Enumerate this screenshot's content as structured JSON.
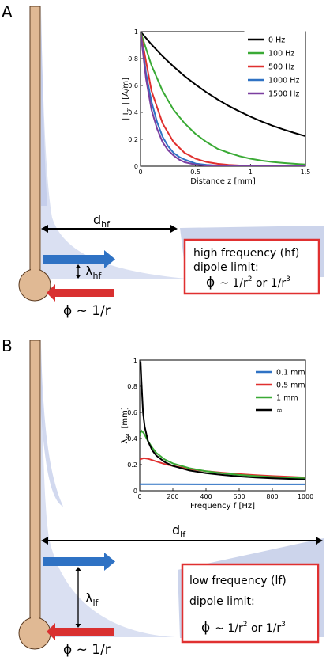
{
  "panels": [
    {
      "letter": "A",
      "distance_label": "d",
      "distance_sub": "hf",
      "lambda_label": "λ",
      "lambda_sub": "hf",
      "phi_label": "ϕ ~ 1/r",
      "box": {
        "line1": "high frequency (hf)",
        "line2": "dipole limit:",
        "phi": "ϕ",
        "rel": "~ 1/r",
        "sup1": "2",
        "mid": " or  1/r",
        "sup2": "3"
      }
    },
    {
      "letter": "B",
      "distance_label": "d",
      "distance_sub": "lf",
      "lambda_label": "λ",
      "lambda_sub": "lf",
      "phi_label": "ϕ ~ 1/r",
      "box": {
        "line1": "low frequency (lf)",
        "line2": "dipole limit:",
        "phi": "ϕ",
        "rel": "~ 1/r",
        "sup1": "2",
        "mid": "  or 1/r",
        "sup2": "3"
      }
    }
  ],
  "colors": {
    "neuron": "#e0b994",
    "neuron_stroke": "#5a3a20",
    "field": "#d3daf0",
    "box_border": "#e03030",
    "blue_arrow": "#2f72c4",
    "red_arrow": "#d93030"
  },
  "chart_data": [
    {
      "type": "line",
      "xlabel": "Distance z [mm]",
      "ylabel": "|i_m| [A/m]",
      "ylabel_main": "i",
      "ylabel_sub": "m",
      "ylabel_unit": "[A/m]",
      "xlim": [
        0,
        1.5
      ],
      "ylim": [
        0,
        1
      ],
      "xticks": [
        "0",
        "0.5",
        "1",
        "1.5"
      ],
      "yticks": [
        "0",
        "0.2",
        "0.4",
        "0.6",
        "0.8",
        "1"
      ],
      "series": [
        {
          "name": "0 Hz",
          "color": "#000000",
          "x": [
            0,
            0.1,
            0.2,
            0.3,
            0.4,
            0.5,
            0.6,
            0.7,
            0.8,
            0.9,
            1.0,
            1.1,
            1.2,
            1.3,
            1.4,
            1.5
          ],
          "y": [
            1.0,
            0.905,
            0.818,
            0.741,
            0.67,
            0.607,
            0.549,
            0.497,
            0.449,
            0.407,
            0.368,
            0.333,
            0.301,
            0.273,
            0.247,
            0.223
          ]
        },
        {
          "name": "100 Hz",
          "color": "#3aaa35",
          "x": [
            0,
            0.1,
            0.2,
            0.3,
            0.4,
            0.5,
            0.6,
            0.7,
            0.8,
            0.9,
            1.0,
            1.1,
            1.2,
            1.3,
            1.4,
            1.5
          ],
          "y": [
            1.0,
            0.75,
            0.56,
            0.42,
            0.32,
            0.24,
            0.18,
            0.13,
            0.1,
            0.075,
            0.056,
            0.042,
            0.032,
            0.024,
            0.018,
            0.013
          ]
        },
        {
          "name": "500 Hz",
          "color": "#e0302f",
          "x": [
            0,
            0.1,
            0.2,
            0.3,
            0.4,
            0.5,
            0.6,
            0.7,
            0.8,
            0.9,
            1.0,
            1.1,
            1.2,
            1.3,
            1.4,
            1.5
          ],
          "y": [
            1.0,
            0.56,
            0.32,
            0.18,
            0.1,
            0.056,
            0.032,
            0.018,
            0.01,
            0.006,
            0.003,
            0.002,
            0.001,
            0.0,
            0.0,
            0.0
          ]
        },
        {
          "name": "1000 Hz",
          "color": "#2f72c4",
          "x": [
            0,
            0.05,
            0.1,
            0.15,
            0.2,
            0.25,
            0.3,
            0.35,
            0.4,
            0.5,
            0.6,
            0.8,
            1.0,
            1.5
          ],
          "y": [
            1.0,
            0.69,
            0.48,
            0.33,
            0.22,
            0.15,
            0.1,
            0.07,
            0.05,
            0.02,
            0.01,
            0.0,
            0.0,
            0.0
          ]
        },
        {
          "name": "1500 Hz",
          "color": "#7b3fa0",
          "x": [
            0,
            0.05,
            0.1,
            0.15,
            0.2,
            0.25,
            0.3,
            0.35,
            0.4,
            0.5,
            0.6,
            0.8,
            1.0,
            1.5
          ],
          "y": [
            1.0,
            0.65,
            0.42,
            0.28,
            0.18,
            0.12,
            0.08,
            0.05,
            0.03,
            0.012,
            0.005,
            0.0,
            0.0,
            0.0
          ]
        }
      ],
      "legend": "top-right",
      "grid": false
    },
    {
      "type": "line",
      "xlabel": "Frequency f [Hz]",
      "ylabel": "λ_AC [mm]",
      "ylabel_main": "λ",
      "ylabel_sub": "AC",
      "ylabel_unit": "[mm]",
      "xlim": [
        0,
        1000
      ],
      "ylim": [
        0,
        1
      ],
      "xticks": [
        "0",
        "200",
        "400",
        "600",
        "800",
        "1000"
      ],
      "yticks": [
        "0",
        "0.2",
        "0.4",
        "0.6",
        "0.8",
        "1"
      ],
      "series": [
        {
          "name": "0.1 mm",
          "color": "#2f72c4",
          "x": [
            0,
            100,
            200,
            400,
            600,
            800,
            1000
          ],
          "y": [
            0.05,
            0.05,
            0.05,
            0.049,
            0.049,
            0.049,
            0.049
          ]
        },
        {
          "name": "0.5 mm",
          "color": "#e0302f",
          "x": [
            0,
            25,
            50,
            100,
            150,
            200,
            300,
            400,
            500,
            600,
            700,
            800,
            900,
            1000
          ],
          "y": [
            0.24,
            0.25,
            0.245,
            0.225,
            0.205,
            0.19,
            0.167,
            0.15,
            0.138,
            0.128,
            0.12,
            0.113,
            0.107,
            0.102
          ]
        },
        {
          "name": "1 mm",
          "color": "#3aaa35",
          "x": [
            0,
            10,
            25,
            50,
            75,
            100,
            150,
            200,
            300,
            400,
            500,
            600,
            700,
            800,
            900,
            1000
          ],
          "y": [
            0.42,
            0.46,
            0.44,
            0.38,
            0.33,
            0.29,
            0.24,
            0.21,
            0.173,
            0.15,
            0.134,
            0.122,
            0.113,
            0.106,
            0.1,
            0.095
          ]
        },
        {
          "name": "∞",
          "color": "#000000",
          "x": [
            5,
            10,
            20,
            30,
            50,
            75,
            100,
            150,
            200,
            300,
            400,
            500,
            600,
            700,
            800,
            900,
            1000
          ],
          "y": [
            0.99,
            0.85,
            0.6,
            0.49,
            0.38,
            0.31,
            0.27,
            0.22,
            0.19,
            0.155,
            0.135,
            0.121,
            0.11,
            0.102,
            0.096,
            0.091,
            0.086
          ]
        }
      ],
      "legend": "top-right",
      "grid": false
    }
  ]
}
